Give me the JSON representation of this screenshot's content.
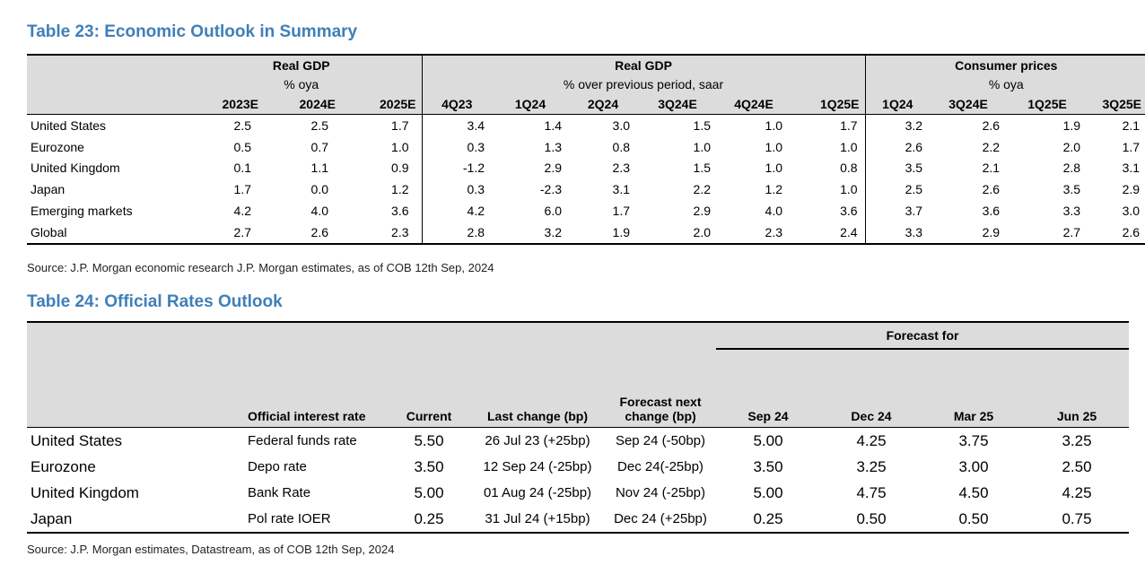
{
  "table23": {
    "title": "Table 23: Economic Outlook in Summary",
    "group1": {
      "title": "Real GDP",
      "sub": "% oya",
      "cols": [
        "2023E",
        "2024E",
        "2025E"
      ]
    },
    "group2": {
      "title": "Real GDP",
      "sub": "% over previous period, saar",
      "cols": [
        "4Q23",
        "1Q24",
        "2Q24",
        "3Q24E",
        "4Q24E",
        "1Q25E"
      ]
    },
    "group3": {
      "title": "Consumer prices",
      "sub": "% oya",
      "cols": [
        "1Q24",
        "3Q24E",
        "1Q25E",
        "3Q25E"
      ]
    },
    "rows": [
      {
        "label": "United States",
        "g1": [
          "2.5",
          "2.5",
          "1.7"
        ],
        "g2": [
          "3.4",
          "1.4",
          "3.0",
          "1.5",
          "1.0",
          "1.7"
        ],
        "g3": [
          "3.2",
          "2.6",
          "1.9",
          "2.1"
        ]
      },
      {
        "label": "Eurozone",
        "g1": [
          "0.5",
          "0.7",
          "1.0"
        ],
        "g2": [
          "0.3",
          "1.3",
          "0.8",
          "1.0",
          "1.0",
          "1.0"
        ],
        "g3": [
          "2.6",
          "2.2",
          "2.0",
          "1.7"
        ]
      },
      {
        "label": "United Kingdom",
        "g1": [
          "0.1",
          "1.1",
          "0.9"
        ],
        "g2": [
          "-1.2",
          "2.9",
          "2.3",
          "1.5",
          "1.0",
          "0.8"
        ],
        "g3": [
          "3.5",
          "2.1",
          "2.8",
          "3.1"
        ]
      },
      {
        "label": "Japan",
        "g1": [
          "1.7",
          "0.0",
          "1.2"
        ],
        "g2": [
          "0.3",
          "-2.3",
          "3.1",
          "2.2",
          "1.2",
          "1.0"
        ],
        "g3": [
          "2.5",
          "2.6",
          "3.5",
          "2.9"
        ]
      },
      {
        "label": "Emerging markets",
        "g1": [
          "4.2",
          "4.0",
          "3.6"
        ],
        "g2": [
          "4.2",
          "6.0",
          "1.7",
          "2.9",
          "4.0",
          "3.6"
        ],
        "g3": [
          "3.7",
          "3.6",
          "3.3",
          "3.0"
        ]
      },
      {
        "label": "Global",
        "g1": [
          "2.7",
          "2.6",
          "2.3"
        ],
        "g2": [
          "2.8",
          "3.2",
          "1.9",
          "2.0",
          "2.3",
          "2.4"
        ],
        "g3": [
          "3.3",
          "2.9",
          "2.7",
          "2.6"
        ]
      }
    ],
    "source": "Source: J.P. Morgan economic research J.P. Morgan estimates, as of COB 12th Sep, 2024"
  },
  "table24": {
    "title": "Table 24: Official Rates Outlook",
    "forecast_for": "Forecast for",
    "headers": [
      "Official interest rate",
      "Current",
      "Last change (bp)",
      "Forecast next change (bp)",
      "Sep 24",
      "Dec 24",
      "Mar 25",
      "Jun 25"
    ],
    "rows": [
      {
        "label": "United States",
        "rate": "Federal funds rate",
        "current": "5.50",
        "last": "26 Jul 23 (+25bp)",
        "next": "Sep 24 (-50bp)",
        "f": [
          "5.00",
          "4.25",
          "3.75",
          "3.25"
        ]
      },
      {
        "label": "Eurozone",
        "rate": "Depo rate",
        "current": "3.50",
        "last": "12 Sep 24 (-25bp)",
        "next": "Dec 24(-25bp)",
        "f": [
          "3.50",
          "3.25",
          "3.00",
          "2.50"
        ]
      },
      {
        "label": "United Kingdom",
        "rate": "Bank Rate",
        "current": "5.00",
        "last": "01 Aug 24 (-25bp)",
        "next": "Nov 24 (-25bp)",
        "f": [
          "5.00",
          "4.75",
          "4.50",
          "4.25"
        ]
      },
      {
        "label": "Japan",
        "rate": "Pol rate IOER",
        "current": "0.25",
        "last": "31 Jul 24 (+15bp)",
        "next": "Dec 24 (+25bp)",
        "f": [
          "0.25",
          "0.50",
          "0.50",
          "0.75"
        ]
      }
    ],
    "source": "Source: J.P. Morgan estimates, Datastream, as of COB 12th Sep, 2024"
  }
}
